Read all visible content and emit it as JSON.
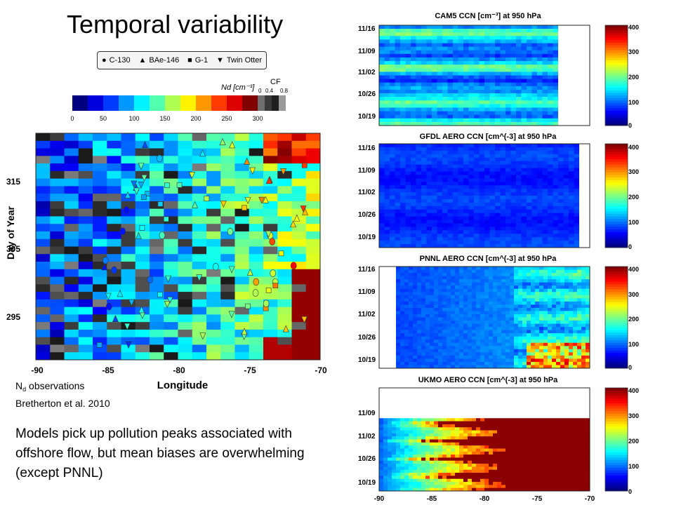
{
  "slide": {
    "title": "Temporal variability",
    "caption_prefix": "N",
    "caption_sub": "d",
    "caption_suffix": " observations",
    "caption_ref": "Bretherton et al. 2010",
    "summary": "Models pick up pollution peaks associated with offshore flow, but mean biases are overwhelming (except PNNL)"
  },
  "legend": {
    "items": [
      {
        "symbol": "●",
        "label": "C-130"
      },
      {
        "symbol": "▲",
        "label": "BAe-146"
      },
      {
        "symbol": "■",
        "label": "G-1"
      },
      {
        "symbol": "▼",
        "label": "Twin Otter"
      }
    ]
  },
  "obs_colorbar": {
    "label": "Nd [cm⁻³]",
    "ticks": [
      "0",
      "50",
      "100",
      "150",
      "200",
      "250",
      "300"
    ],
    "cf_label": "CF",
    "cf_ticks": [
      "0",
      "0.4",
      "0.8"
    ]
  },
  "chart_data": [
    {
      "type": "heatmap",
      "id": "obs",
      "title": "",
      "xlabel": "Longitude",
      "ylabel": "Day of Year",
      "xlim": [
        -90,
        -70
      ],
      "ylim": [
        289,
        323
      ],
      "x_ticks": [
        "-90",
        "-85",
        "-80",
        "-75",
        "-70"
      ],
      "y_ticks": [
        "295",
        "305",
        "315"
      ],
      "colorbar": {
        "min": 0,
        "max": 300,
        "colormap": "jet"
      },
      "pattern": "Nd increases eastward toward the coast (-72 to -70), values near 300 in red band; gray cells where cloud fraction low; aircraft symbols overlaid"
    },
    {
      "type": "heatmap",
      "id": "cam5",
      "title": "CAM5 CCN [cm⁻³] at 950 hPa",
      "y_ticks": [
        "11/16",
        "11/09",
        "11/02",
        "10/26",
        "10/19"
      ],
      "colorbar": {
        "min": 0,
        "max": 400,
        "ticks": [
          "0",
          "100",
          "200",
          "300",
          "400"
        ],
        "colormap": "jet"
      },
      "pattern": "mostly 50-150 with light-blue bands, white (no data) region on the east side"
    },
    {
      "type": "heatmap",
      "id": "gfdl",
      "title": "GFDL AERO CCN [cm^(-3] at 950 hPa",
      "y_ticks": [
        "11/16",
        "11/09",
        "11/02",
        "10/26",
        "10/19"
      ],
      "colorbar": {
        "min": 0,
        "max": 400,
        "ticks": [
          "0",
          "100",
          "200",
          "300",
          "400"
        ],
        "colormap": "jet"
      },
      "pattern": "uniform low values ~20-60 (dark blue)"
    },
    {
      "type": "heatmap",
      "id": "pnnl",
      "title": "PNNL AERO CCN [cm^(-3] at 950 hPa",
      "y_ticks": [
        "11/16",
        "11/09",
        "11/02",
        "10/26",
        "10/19"
      ],
      "colorbar": {
        "min": 0,
        "max": 400,
        "ticks": [
          "0",
          "100",
          "200",
          "300",
          "400"
        ],
        "colormap": "jet"
      },
      "pattern": "blue offshore, increasing toward coast with orange/red peaks near 10/19-10/26"
    },
    {
      "type": "heatmap",
      "id": "ukmo",
      "title": "UKMO AERO CCN [cm^(-3] at 950 hPa",
      "xlim": [
        -90,
        -70
      ],
      "x_ticks": [
        "-90",
        "-85",
        "-80",
        "-75",
        "-70"
      ],
      "y_ticks": [
        "11/09",
        "11/02",
        "10/26",
        "10/19"
      ],
      "colorbar": {
        "min": 0,
        "max": 400,
        "ticks": [
          "0",
          "100",
          "200",
          "300",
          "400"
        ],
        "colormap": "jet"
      },
      "pattern": "saturated dark red (>400) over most of the eastern domain with blue tongues offshore"
    }
  ]
}
